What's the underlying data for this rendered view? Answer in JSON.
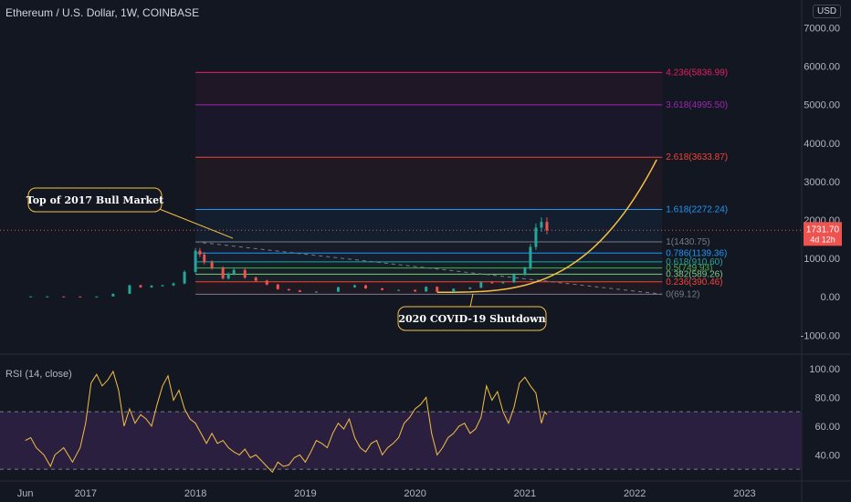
{
  "header": {
    "title": "Ethereum / U.S. Dollar, 1W, COINBASE",
    "currency": "USD"
  },
  "price_tag": {
    "value": "1731.70",
    "countdown": "4d 12h"
  },
  "annotations": {
    "top2017": "Top of 2017 Bull Market",
    "covid": "2020 COVID-19 Shutdown"
  },
  "colors": {
    "background": "#131722",
    "up": "#26a69a",
    "down": "#ef5350",
    "rsi_line": "#f5c044",
    "rsi_band": "#2a1f3f",
    "callout_fill": "#131722",
    "callout_border": "#f5c044",
    "curve": "#f5c044"
  },
  "chart_data": [
    {
      "type": "candlestick",
      "title": "Ethereum / U.S. Dollar, 1W, COINBASE",
      "price_axis": {
        "ticks": [
          "7000.00",
          "6000.00",
          "5000.00",
          "4000.00",
          "3000.00",
          "2000.00",
          "1000.00",
          "0.00",
          "-1000.00"
        ],
        "ylim": [
          -1300,
          7200
        ]
      },
      "time_axis": {
        "ticks": [
          "Jun",
          "2017",
          "2018",
          "2019",
          "2020",
          "2021",
          "2022",
          "2023"
        ],
        "xlim": [
          2016.22,
          2023.52
        ]
      },
      "series": [
        {
          "x": [
            2016.35,
            2016.5,
            2016.65,
            2016.8,
            2016.95,
            2017.1,
            2017.25,
            2017.4,
            2017.5,
            2017.6,
            2017.7,
            2017.8,
            2017.9,
            2018.0,
            2018.04,
            2018.08,
            2018.15,
            2018.25,
            2018.3,
            2018.35,
            2018.45,
            2018.55,
            2018.65,
            2018.75,
            2018.85,
            2018.95,
            2019.1,
            2019.3,
            2019.45,
            2019.55,
            2019.7,
            2019.85,
            2020.0,
            2020.1,
            2020.2,
            2020.35,
            2020.5,
            2020.6,
            2020.7,
            2020.8,
            2020.9,
            2021.0,
            2021.05,
            2021.1,
            2021.15,
            2021.2
          ],
          "y": [
            10,
            12,
            12,
            10,
            8,
            11,
            80,
            300,
            250,
            290,
            300,
            350,
            650,
            1200,
            1100,
            900,
            750,
            480,
            600,
            700,
            500,
            420,
            320,
            200,
            170,
            130,
            135,
            250,
            300,
            220,
            180,
            180,
            140,
            260,
            130,
            210,
            240,
            380,
            360,
            380,
            580,
            740,
            1300,
            1800,
            1950,
            1731.7
          ]
        }
      ],
      "fib_levels": [
        {
          "ratio": "4.236",
          "price": 5836.99,
          "color": "#e91e63"
        },
        {
          "ratio": "3.618",
          "price": 4995.5,
          "color": "#9c27b0"
        },
        {
          "ratio": "2.618",
          "price": 3633.87,
          "color": "#f44336"
        },
        {
          "ratio": "1.618",
          "price": 2272.24,
          "color": "#2196f3"
        },
        {
          "ratio": "1",
          "price": 1430.75,
          "color": "#787b86"
        },
        {
          "ratio": "0.786",
          "price": 1139.36,
          "color": "#2196f3"
        },
        {
          "ratio": "0.618",
          "price": 910.6,
          "color": "#26a69a"
        },
        {
          "ratio": "0.5",
          "price": 749.93,
          "color": "#4caf50"
        },
        {
          "ratio": "0.382",
          "price": 589.26,
          "color": "#81c784"
        },
        {
          "ratio": "0.236",
          "price": 390.46,
          "color": "#f44336"
        },
        {
          "ratio": "0",
          "price": 69.12,
          "color": "#787b86"
        }
      ],
      "fib_range": [
        2018.0,
        2022.25
      ]
    },
    {
      "type": "line",
      "title": "RSI (14, close)",
      "y_axis": {
        "ticks": [
          "100.00",
          "80.00",
          "60.00",
          "40.00"
        ],
        "ylim": [
          25,
          105
        ]
      },
      "bands": {
        "upper": 70,
        "lower": 30
      },
      "series": [
        {
          "x": [
            2016.45,
            2016.5,
            2016.55,
            2016.62,
            2016.68,
            2016.72,
            2016.8,
            2016.88,
            2016.95,
            2017.0,
            2017.05,
            2017.1,
            2017.15,
            2017.2,
            2017.25,
            2017.3,
            2017.35,
            2017.4,
            2017.45,
            2017.5,
            2017.55,
            2017.6,
            2017.65,
            2017.7,
            2017.75,
            2017.8,
            2017.85,
            2017.9,
            2017.95,
            2018.0,
            2018.05,
            2018.1,
            2018.15,
            2018.2,
            2018.25,
            2018.3,
            2018.35,
            2018.4,
            2018.45,
            2018.5,
            2018.55,
            2018.6,
            2018.65,
            2018.7,
            2018.75,
            2018.8,
            2018.85,
            2018.9,
            2018.95,
            2019.0,
            2019.05,
            2019.1,
            2019.15,
            2019.2,
            2019.25,
            2019.3,
            2019.35,
            2019.4,
            2019.45,
            2019.5,
            2019.55,
            2019.6,
            2019.65,
            2019.7,
            2019.75,
            2019.8,
            2019.85,
            2019.9,
            2019.95,
            2020.0,
            2020.05,
            2020.1,
            2020.15,
            2020.2,
            2020.25,
            2020.3,
            2020.35,
            2020.4,
            2020.45,
            2020.5,
            2020.55,
            2020.6,
            2020.65,
            2020.7,
            2020.75,
            2020.8,
            2020.85,
            2020.9,
            2020.95,
            2021.0,
            2021.05,
            2021.1,
            2021.15,
            2021.18,
            2021.2
          ],
          "y": [
            50,
            52,
            45,
            40,
            32,
            40,
            45,
            35,
            45,
            62,
            90,
            96,
            88,
            92,
            98,
            85,
            60,
            72,
            62,
            68,
            65,
            60,
            75,
            88,
            95,
            78,
            85,
            72,
            65,
            62,
            55,
            48,
            55,
            48,
            50,
            45,
            42,
            40,
            44,
            38,
            40,
            36,
            32,
            28,
            35,
            32,
            33,
            38,
            40,
            35,
            42,
            50,
            48,
            45,
            55,
            62,
            58,
            65,
            52,
            45,
            42,
            48,
            50,
            40,
            45,
            48,
            52,
            62,
            66,
            72,
            75,
            80,
            55,
            40,
            45,
            52,
            55,
            60,
            62,
            55,
            58,
            66,
            88,
            78,
            84,
            70,
            62,
            73,
            90,
            94,
            88,
            83,
            62,
            70,
            68
          ]
        }
      ]
    }
  ]
}
